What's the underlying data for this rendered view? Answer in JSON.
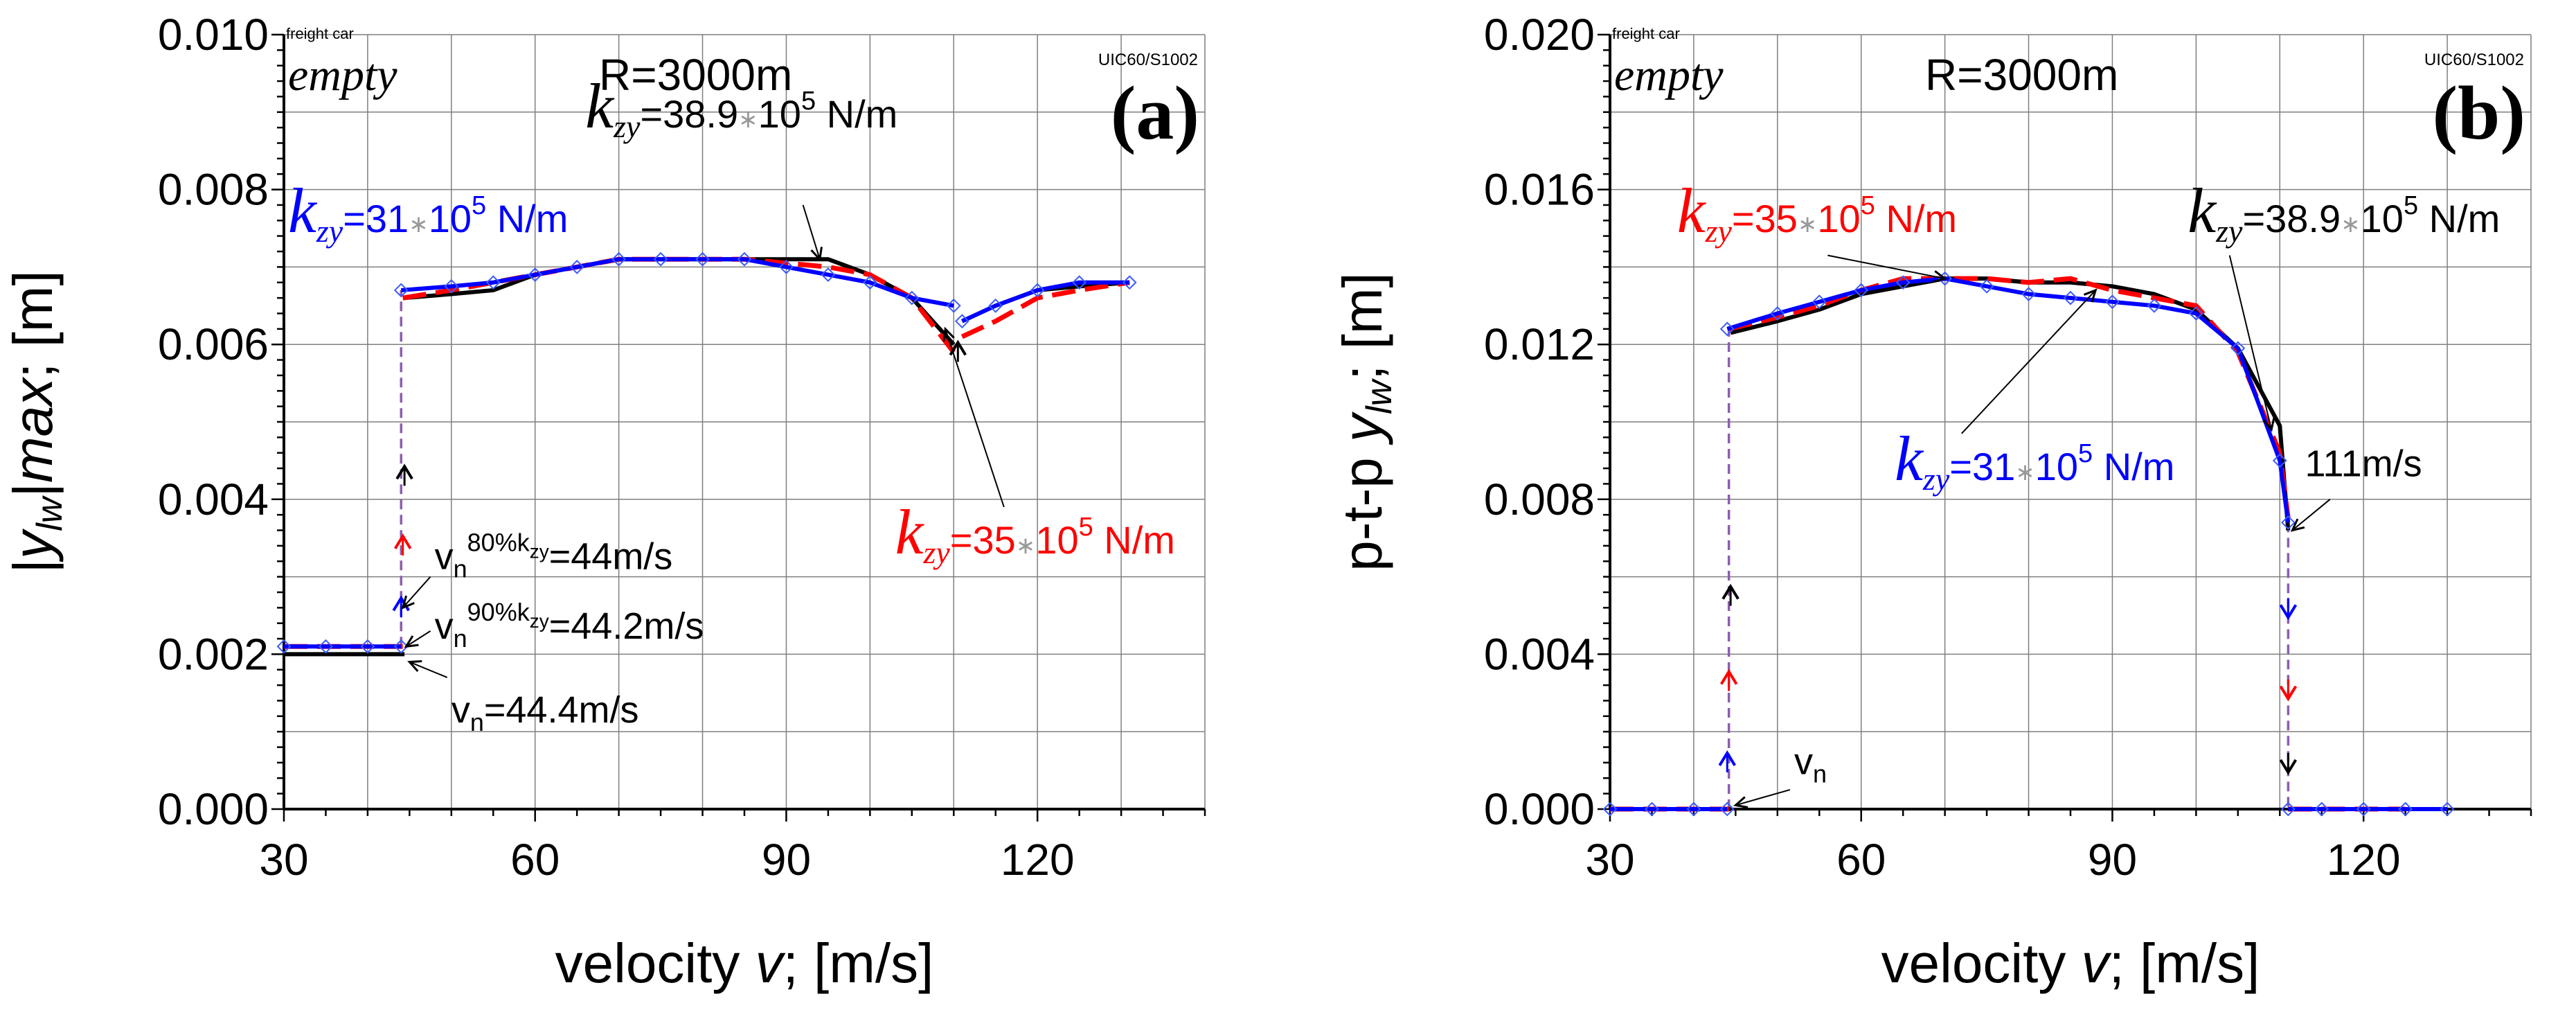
{
  "colors": {
    "black": "#000000",
    "red": "#ff0000",
    "blue": "#0000ff",
    "purple": "#8b5fae",
    "grid": "#7f7f7f",
    "marker": "#3a5bff"
  },
  "chart_data": [
    {
      "type": "line",
      "panel_label": "(a)",
      "vehicle_label": "freight car",
      "load_label": "empty",
      "radius_label": "R=3000m",
      "track_label": "UIC60/S1002",
      "ylabel": "|y_lw|max; [m]",
      "xlabel": "velocity v; [m/s]",
      "xlim": [
        30,
        140
      ],
      "ylim": [
        0,
        0.01
      ],
      "xticks": [
        30,
        60,
        90,
        120
      ],
      "xtick_labels": [
        "30",
        "60",
        "90",
        "120"
      ],
      "yticks": [
        0,
        0.002,
        0.004,
        0.006,
        0.008,
        0.01
      ],
      "ytick_labels": [
        "0.000",
        "0.002",
        "0.004",
        "0.006",
        "0.008",
        "0.010"
      ],
      "series": [
        {
          "name": "k_zy=38.9·10^5 N/m",
          "color": "#000000",
          "dash": "solid",
          "segments": [
            {
              "x": [
                30,
                35,
                40,
                44.4
              ],
              "y": [
                0.002,
                0.002,
                0.002,
                0.002
              ]
            },
            {
              "x": [
                44.4,
                50,
                55,
                60,
                65,
                70,
                75,
                80,
                85,
                90,
                95,
                100,
                105,
                110
              ],
              "y": [
                0.0066,
                0.00665,
                0.0067,
                0.0069,
                0.007,
                0.0071,
                0.0071,
                0.0071,
                0.0071,
                0.0071,
                0.0071,
                0.0069,
                0.0066,
                0.006
              ]
            },
            {
              "x": [
                111,
                115,
                120,
                125,
                131
              ],
              "y": [
                0.0063,
                0.0065,
                0.0067,
                0.00675,
                0.0068
              ]
            }
          ]
        },
        {
          "name": "k_zy=35·10^5 N/m",
          "color": "#ff0000",
          "dash": "dashed",
          "segments": [
            {
              "x": [
                30,
                35,
                40,
                44.2
              ],
              "y": [
                0.0021,
                0.0021,
                0.0021,
                0.0021
              ]
            },
            {
              "x": [
                44.2,
                50,
                55,
                60,
                65,
                70,
                75,
                80,
                85,
                90,
                95,
                100,
                105,
                110
              ],
              "y": [
                0.0066,
                0.0067,
                0.0068,
                0.0069,
                0.007,
                0.0071,
                0.0071,
                0.0071,
                0.0071,
                0.00705,
                0.007,
                0.0069,
                0.0066,
                0.0059
              ]
            },
            {
              "x": [
                111,
                115,
                120,
                125,
                131
              ],
              "y": [
                0.0061,
                0.0063,
                0.0066,
                0.0067,
                0.0068
              ]
            }
          ]
        },
        {
          "name": "k_zy=31·10^5 N/m",
          "color": "#0000ff",
          "dash": "solid",
          "markers": true,
          "segments": [
            {
              "x": [
                30,
                35,
                40,
                44
              ],
              "y": [
                0.0021,
                0.0021,
                0.0021,
                0.0021
              ]
            },
            {
              "x": [
                44,
                50,
                55,
                60,
                65,
                70,
                75,
                80,
                85,
                90,
                95,
                100,
                105,
                110
              ],
              "y": [
                0.0067,
                0.00675,
                0.0068,
                0.0069,
                0.007,
                0.0071,
                0.0071,
                0.0071,
                0.0071,
                0.007,
                0.0069,
                0.0068,
                0.0066,
                0.0065
              ]
            },
            {
              "x": [
                111,
                115,
                120,
                125,
                131
              ],
              "y": [
                0.0063,
                0.0065,
                0.0067,
                0.0068,
                0.0068
              ]
            }
          ]
        }
      ],
      "jumps": [
        {
          "x": 44,
          "y0": 0.0021,
          "y1": 0.0067,
          "color": "#8b5fae"
        }
      ],
      "arrows": [
        {
          "x": 44.4,
          "y": 0.0043,
          "dir": "up",
          "color": "#000000"
        },
        {
          "x": 44.2,
          "y": 0.0034,
          "dir": "up",
          "color": "#ff0000"
        },
        {
          "x": 44,
          "y": 0.0026,
          "dir": "up",
          "color": "#0000ff"
        },
        {
          "x": 110.5,
          "y": 0.0059,
          "dir": "up",
          "color": "#000000"
        }
      ],
      "annotations": [
        {
          "id": "a-k389",
          "k": "k",
          "sub": "zy",
          "mid": "=38.9",
          "star": "∗",
          "ten": "10",
          "exp": "5",
          "unit": " N/m",
          "color": "#000000",
          "x": 66,
          "y": 0.0088,
          "kfs": 92,
          "fs": 56,
          "pointer": {
            "x0": 92,
            "y0": 0.0078,
            "x1": 94,
            "y1": 0.0071
          }
        },
        {
          "id": "a-k31",
          "k": "k",
          "sub": "zy",
          "mid": "=31",
          "star": "∗",
          "ten": "10",
          "exp": "5",
          "unit": " N/m",
          "color": "#0000ff",
          "x": 30.5,
          "y": 0.00745,
          "kfs": 92,
          "fs": 56,
          "pointer": null
        },
        {
          "id": "a-k35",
          "k": "k",
          "sub": "zy",
          "mid": "=35",
          "star": "∗",
          "ten": "10",
          "exp": "5",
          "unit": " N/m",
          "color": "#ff0000",
          "x": 103,
          "y": 0.0033,
          "kfs": 92,
          "fs": 56,
          "pointer": {
            "x0": 116,
            "y0": 0.0039,
            "x1": 109,
            "y1": 0.0062
          }
        }
      ],
      "vn_labels": [
        {
          "id": "vn80",
          "main": "v",
          "sub": "n",
          "sup": "80%k",
          "supsub": "zy",
          "rest": "=44m/s",
          "x": 48,
          "y": 0.0031,
          "pointer": {
            "x0": 47.5,
            "y0": 0.003,
            "x1": 44.2,
            "y1": 0.0026
          }
        },
        {
          "id": "vn90",
          "main": "v",
          "sub": "n",
          "sup": "90%k",
          "supsub": "zy",
          "rest": "=44.2m/s",
          "x": 48,
          "y": 0.0022,
          "pointer": {
            "x0": 47.5,
            "y0": 0.0023,
            "x1": 44.6,
            "y1": 0.0021
          }
        },
        {
          "id": "vn",
          "main": "v",
          "sub": "n",
          "sup": "",
          "supsub": "",
          "rest": "=44.4m/s",
          "x": 50,
          "y": 0.00112,
          "pointer": {
            "x0": 49.5,
            "y0": 0.0017,
            "x1": 45,
            "y1": 0.0019
          }
        }
      ]
    },
    {
      "type": "line",
      "panel_label": "(b)",
      "vehicle_label": "freight car",
      "load_label": "empty",
      "radius_label": "R=3000m",
      "track_label": "UIC60/S1002",
      "ylabel": "p-t-p y_lw; [m]",
      "xlabel": "velocity v; [m/s]",
      "xlim": [
        30,
        140
      ],
      "ylim": [
        0,
        0.02
      ],
      "xticks": [
        30,
        60,
        90,
        120
      ],
      "xtick_labels": [
        "30",
        "60",
        "90",
        "120"
      ],
      "yticks": [
        0,
        0.004,
        0.008,
        0.012,
        0.016,
        0.02
      ],
      "ytick_labels": [
        "0.000",
        "0.004",
        "0.008",
        "0.012",
        "0.016",
        "0.020"
      ],
      "series": [
        {
          "name": "k_zy=38.9·10^5 N/m",
          "color": "#000000",
          "dash": "solid",
          "segments": [
            {
              "x": [
                30,
                35,
                40,
                44.4
              ],
              "y": [
                0,
                0,
                0,
                0
              ]
            },
            {
              "x": [
                44.4,
                50,
                55,
                60,
                65,
                70,
                75,
                80,
                85,
                90,
                95,
                100,
                105,
                110,
                111
              ],
              "y": [
                0.0123,
                0.0126,
                0.0129,
                0.0133,
                0.0135,
                0.0137,
                0.0137,
                0.0136,
                0.0136,
                0.0135,
                0.0133,
                0.0129,
                0.0119,
                0.0099,
                0.0072
              ]
            },
            {
              "x": [
                111,
                115,
                120,
                125
              ],
              "y": [
                0,
                0,
                0,
                0
              ]
            }
          ]
        },
        {
          "name": "k_zy=35·10^5 N/m",
          "color": "#ff0000",
          "dash": "dashed",
          "segments": [
            {
              "x": [
                30,
                35,
                40,
                44.2
              ],
              "y": [
                0,
                0,
                0,
                0
              ]
            },
            {
              "x": [
                44.2,
                50,
                55,
                60,
                65,
                70,
                75,
                80,
                85,
                90,
                95,
                100,
                105,
                110,
                111
              ],
              "y": [
                0.0124,
                0.0127,
                0.013,
                0.0134,
                0.0137,
                0.0137,
                0.0137,
                0.0136,
                0.0137,
                0.0134,
                0.0132,
                0.013,
                0.0118,
                0.0092,
                0.0075
              ]
            },
            {
              "x": [
                111,
                115,
                120,
                125
              ],
              "y": [
                0,
                0,
                0,
                0
              ]
            }
          ]
        },
        {
          "name": "k_zy=31·10^5 N/m",
          "color": "#0000ff",
          "dash": "solid",
          "markers": true,
          "segments": [
            {
              "x": [
                30,
                35,
                40,
                44
              ],
              "y": [
                0,
                0,
                0,
                0
              ]
            },
            {
              "x": [
                44,
                50,
                55,
                60,
                65,
                70,
                75,
                80,
                85,
                90,
                95,
                100,
                105,
                110,
                111
              ],
              "y": [
                0.0124,
                0.0128,
                0.0131,
                0.0134,
                0.0136,
                0.0137,
                0.0135,
                0.0133,
                0.0132,
                0.0131,
                0.013,
                0.0128,
                0.0119,
                0.009,
                0.0074
              ]
            },
            {
              "x": [
                111,
                115,
                120,
                125,
                130
              ],
              "y": [
                0,
                0,
                0,
                0,
                0
              ]
            }
          ]
        }
      ],
      "jumps": [
        {
          "x": 44.2,
          "y0": 0,
          "y1": 0.0124,
          "color": "#8b5fae"
        },
        {
          "x": 111,
          "y0": 0.0074,
          "y1": 0,
          "color": "#8b5fae"
        }
      ],
      "arrows": [
        {
          "x": 44.4,
          "y": 0.0055,
          "dir": "up",
          "color": "#000000"
        },
        {
          "x": 44.2,
          "y": 0.0033,
          "dir": "up",
          "color": "#ff0000"
        },
        {
          "x": 44,
          "y": 0.0012,
          "dir": "up",
          "color": "#0000ff"
        },
        {
          "x": 111,
          "y": 0.0052,
          "dir": "down",
          "color": "#0000ff"
        },
        {
          "x": 111,
          "y": 0.0031,
          "dir": "down",
          "color": "#ff0000"
        },
        {
          "x": 111,
          "y": 0.0012,
          "dir": "down",
          "color": "#000000"
        }
      ],
      "annotations": [
        {
          "id": "b-k35",
          "k": "k",
          "sub": "zy",
          "mid": "=35",
          "star": "∗",
          "ten": "10",
          "exp": "5",
          "unit": " N/m",
          "color": "#ff0000",
          "x": 38,
          "y": 0.0149,
          "kfs": 92,
          "fs": 56,
          "pointer": {
            "x0": 56,
            "y0": 0.0143,
            "x1": 70,
            "y1": 0.0137
          }
        },
        {
          "id": "b-k389",
          "k": "k",
          "sub": "zy",
          "mid": "=38.9",
          "star": "∗",
          "ten": "10",
          "exp": "5",
          "unit": " N/m",
          "color": "#000000",
          "x": 99,
          "y": 0.0149,
          "kfs": 92,
          "fs": 56,
          "pointer": {
            "x0": 104,
            "y0": 0.0143,
            "x1": 109,
            "y1": 0.0098
          }
        },
        {
          "id": "b-k31",
          "k": "k",
          "sub": "zy",
          "mid": "=31",
          "star": "∗",
          "ten": "10",
          "exp": "5",
          "unit": " N/m",
          "color": "#0000ff",
          "x": 64,
          "y": 0.0085,
          "kfs": 92,
          "fs": 56,
          "pointer": {
            "x0": 72,
            "y0": 0.0097,
            "x1": 88,
            "y1": 0.0134
          }
        }
      ],
      "text_labels": [
        {
          "id": "b-111",
          "text": "111m/s",
          "x": 113,
          "y": 0.0086,
          "pointer": {
            "x0": 116,
            "y0": 0.008,
            "x1": 111.5,
            "y1": 0.0072
          }
        },
        {
          "id": "b-vn",
          "main": "v",
          "sub": "n",
          "x": 52,
          "y": 0.0009,
          "pointer": {
            "x0": 51.5,
            "y0": 0.0005,
            "x1": 45,
            "y1": 0.0001
          }
        }
      ]
    }
  ]
}
